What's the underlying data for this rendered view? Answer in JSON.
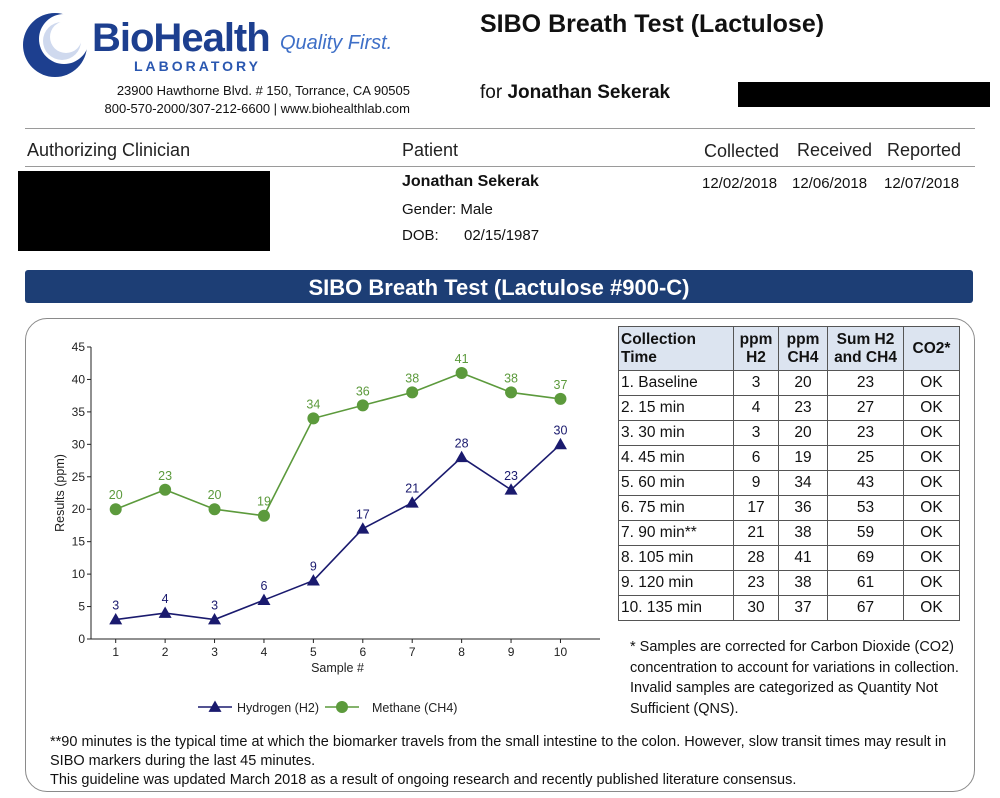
{
  "header": {
    "logo_name": "BioHealth",
    "logo_sub": "LABORATORY",
    "logo_tagline": "Quality First.",
    "address_line1": "23900 Hawthorne Blvd. # 150, Torrance, CA 90505",
    "address_line2": "800-570-2000/307-212-6600  |  www.biohealthlab.com",
    "title": "SIBO Breath Test (Lactulose)",
    "for_label": "for",
    "for_name": "Jonathan Sekerak",
    "colors": {
      "brand_blue": "#1d3f8f",
      "tagline_blue": "#3e6fc7"
    }
  },
  "info": {
    "clinician_label": "Authorizing Clinician",
    "patient_label": "Patient",
    "patient_name": "Jonathan Sekerak",
    "gender": "Gender: Male",
    "dob_label": "DOB:",
    "dob": "02/15/1987",
    "collected_label": "Collected",
    "received_label": "Received",
    "reported_label": "Reported",
    "collected": "12/02/2018",
    "received": "12/06/2018",
    "reported": "12/07/2018"
  },
  "banner": {
    "title": "SIBO Breath Test (Lactulose #900-C)",
    "color": "#1d3e75"
  },
  "chart_data": {
    "type": "line",
    "title": "",
    "xlabel": "Sample #",
    "ylabel": "Results (ppm)",
    "x": [
      1,
      2,
      3,
      4,
      5,
      6,
      7,
      8,
      9,
      10
    ],
    "ylim": [
      0,
      45
    ],
    "yticks": [
      0,
      5,
      10,
      15,
      20,
      25,
      30,
      35,
      40,
      45
    ],
    "grid": false,
    "legend": "bottom",
    "series": [
      {
        "name": "Hydrogen (H2)",
        "marker": "triangle",
        "color": "#1a1a6e",
        "values": [
          3,
          4,
          3,
          6,
          9,
          17,
          21,
          28,
          23,
          30
        ]
      },
      {
        "name": "Methane (CH4)",
        "marker": "circle",
        "color": "#5c9a3c",
        "values": [
          20,
          23,
          20,
          19,
          34,
          36,
          38,
          41,
          38,
          37
        ]
      }
    ]
  },
  "table": {
    "headers": [
      "Collection\nTime",
      "ppm\nH2",
      "ppm\nCH4",
      "Sum H2\nand CH4",
      "CO2*"
    ],
    "rows": [
      [
        "1. Baseline",
        "3",
        "20",
        "23",
        "OK"
      ],
      [
        "2. 15 min",
        "4",
        "23",
        "27",
        "OK"
      ],
      [
        "3. 30 min",
        "3",
        "20",
        "23",
        "OK"
      ],
      [
        "4. 45 min",
        "6",
        "19",
        "25",
        "OK"
      ],
      [
        "5. 60 min",
        "9",
        "34",
        "43",
        "OK"
      ],
      [
        "6. 75 min",
        "17",
        "36",
        "53",
        "OK"
      ],
      [
        "7. 90 min**",
        "21",
        "38",
        "59",
        "OK"
      ],
      [
        "8. 105 min",
        "28",
        "41",
        "69",
        "OK"
      ],
      [
        "9. 120 min",
        "23",
        "38",
        "61",
        "OK"
      ],
      [
        "10. 135 min",
        "30",
        "37",
        "67",
        "OK"
      ]
    ],
    "header_bg": "#dce4f0"
  },
  "note": "* Samples are corrected for Carbon Dioxide (CO2) concentration to account for variations in collection. Invalid samples are categorized as Quantity Not Sufficient (QNS).",
  "footnote": {
    "line1": "**90 minutes is the typical time at which the biomarker travels from the small intestine to the colon. However, slow transit times may result in SIBO markers during the last 45 minutes.",
    "line2": "This guideline was updated March 2018 as a result of ongoing research and recently published literature consensus."
  }
}
